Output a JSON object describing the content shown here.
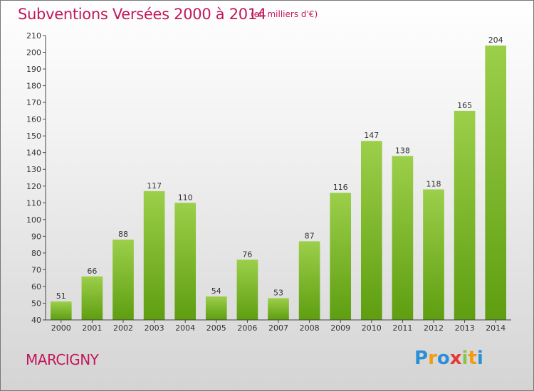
{
  "chart_data": {
    "type": "bar",
    "title": "Subventions Versées 2000 à 2014",
    "subtitle": "(en milliers d'€)",
    "categories": [
      "2000",
      "2001",
      "2002",
      "2003",
      "2004",
      "2005",
      "2006",
      "2007",
      "2008",
      "2009",
      "2010",
      "2011",
      "2012",
      "2013",
      "2014"
    ],
    "values": [
      51,
      66,
      88,
      117,
      110,
      54,
      76,
      53,
      87,
      116,
      147,
      138,
      118,
      165,
      204
    ],
    "ylim": [
      40,
      210
    ],
    "yticks": [
      40,
      50,
      60,
      70,
      80,
      90,
      100,
      110,
      120,
      130,
      140,
      150,
      160,
      170,
      180,
      190,
      200,
      210
    ],
    "grid": false,
    "colors": {
      "bar_top": "#9ccf4a",
      "bar_bottom": "#5e9e10",
      "title": "#c2185b"
    }
  },
  "footer": {
    "commune": "MARCIGNY"
  },
  "logo": {
    "letters": [
      "P",
      "r",
      "o",
      "x",
      "i",
      "t",
      "i"
    ],
    "colors": [
      "#2a8fd6",
      "#f39c12",
      "#2a8fd6",
      "#e53935",
      "#8bc34a",
      "#f39c12",
      "#2a8fd6"
    ]
  }
}
